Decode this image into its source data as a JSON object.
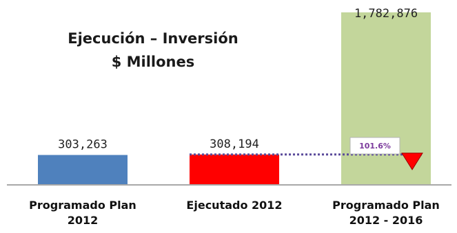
{
  "chart_data": {
    "type": "bar",
    "title": "Ejecución – Inversión",
    "subtitle": "$ Millones",
    "categories": [
      [
        "Programado Plan",
        "2012"
      ],
      [
        "Ejecutado 2012"
      ],
      [
        "Programado Plan",
        "2012 - 2016"
      ]
    ],
    "values": [
      303263,
      308194,
      1782876
    ],
    "value_labels": [
      "303,263",
      "308,194",
      "1,782,876"
    ],
    "colors": [
      "#4f81bd",
      "#ff0000",
      "#c3d69b"
    ],
    "annotation": {
      "text": "101.6%",
      "reference_value": 308194,
      "line_color": "#5a4a9a",
      "text_color": "#7b3a9c",
      "marker_color": "#ff0000"
    },
    "ylim": [
      0,
      1800000
    ],
    "grid": false,
    "legend": "none"
  }
}
